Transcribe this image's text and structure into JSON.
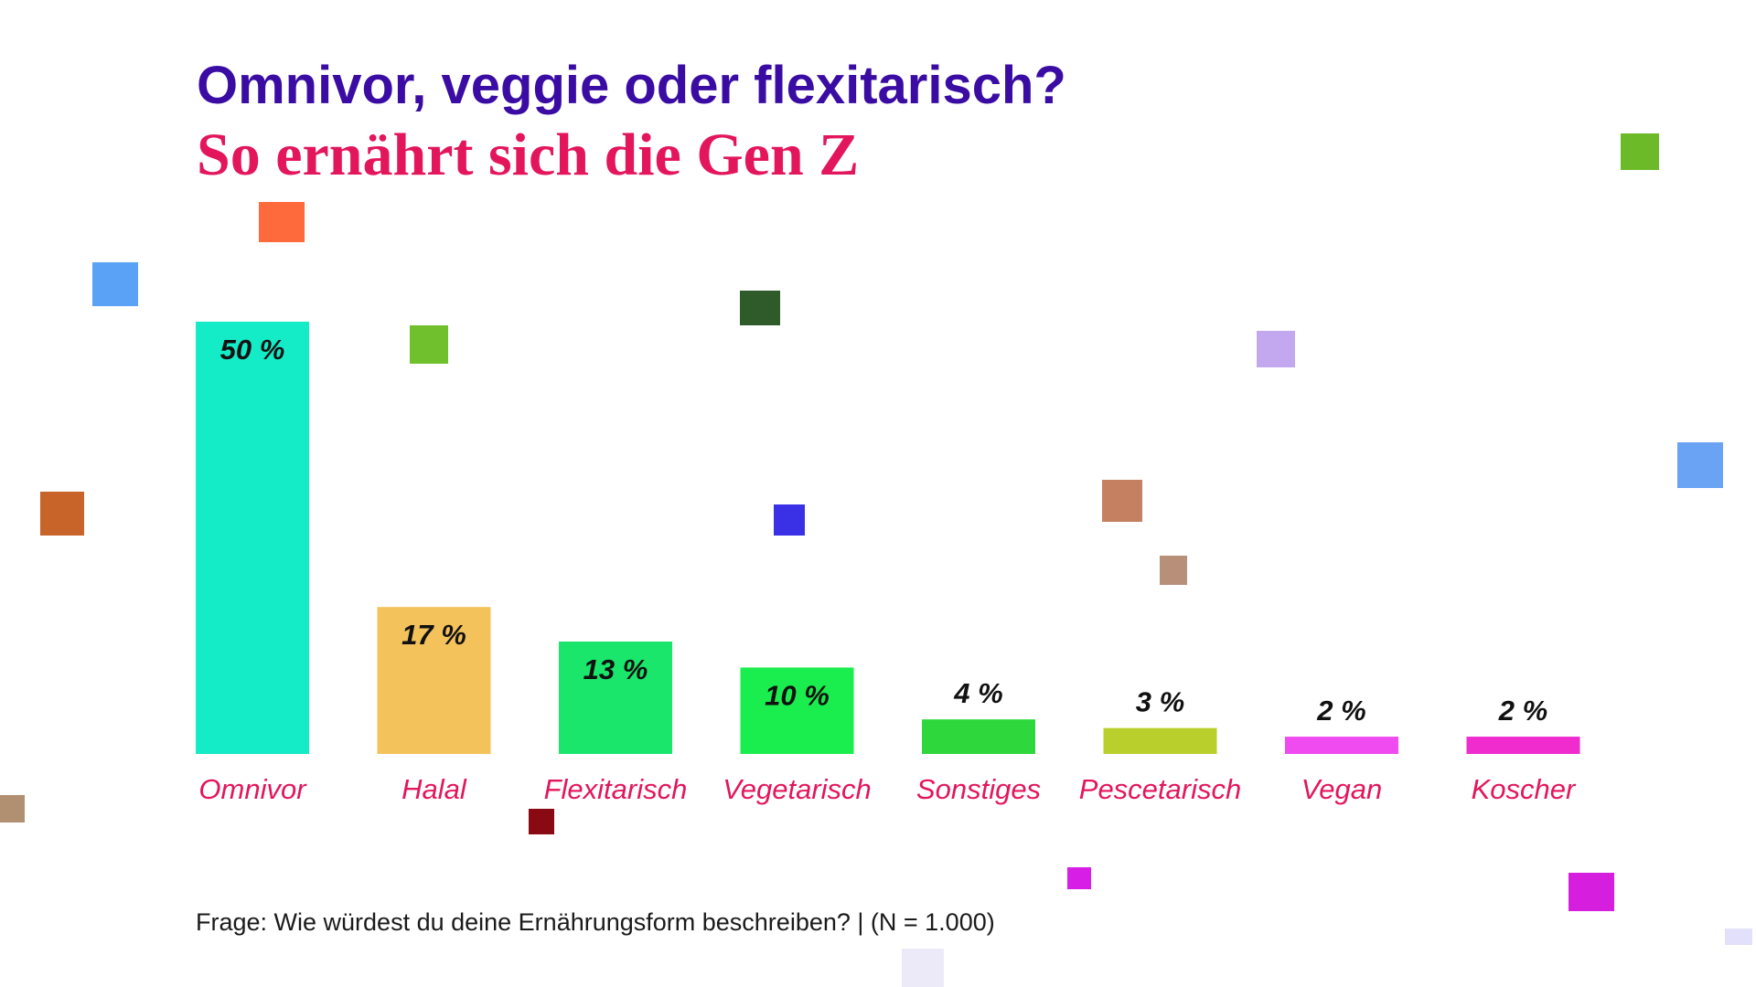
{
  "header": {
    "title": "Omnivor, veggie oder flexitarisch?",
    "subtitle": "So ernährt sich die Gen Z"
  },
  "footnote": "Frage: Wie würdest du deine Ernährungsform beschreiben? | (N = 1.000)",
  "chart_data": {
    "type": "bar",
    "title": "Omnivor, veggie oder flexitarisch?",
    "subtitle": "So ernährt sich die Gen Z",
    "categories": [
      "Omnivor",
      "Halal",
      "Flexitarisch",
      "Vegetarisch",
      "Sonstiges",
      "Pescetarisch",
      "Vegan",
      "Koscher"
    ],
    "values": [
      50,
      17,
      13,
      10,
      4,
      3,
      2,
      2
    ],
    "labels": [
      "50 %",
      "17 %",
      "13 %",
      "10 %",
      "4 %",
      "3 %",
      "2 %",
      "2 %"
    ],
    "unit": "%",
    "ylim": [
      0,
      50
    ],
    "grid": false,
    "bar_colors": [
      "#14ecc8",
      "#f4c25a",
      "#19e66a",
      "#1aee4e",
      "#2ed83c",
      "#b9cf2c",
      "#f04bf0",
      "#f02ccf"
    ],
    "label_color": "#111111",
    "category_label_color": "#e3165b",
    "colors": {
      "title": "#3a0ca3",
      "subtitle": "#e3165b"
    }
  }
}
